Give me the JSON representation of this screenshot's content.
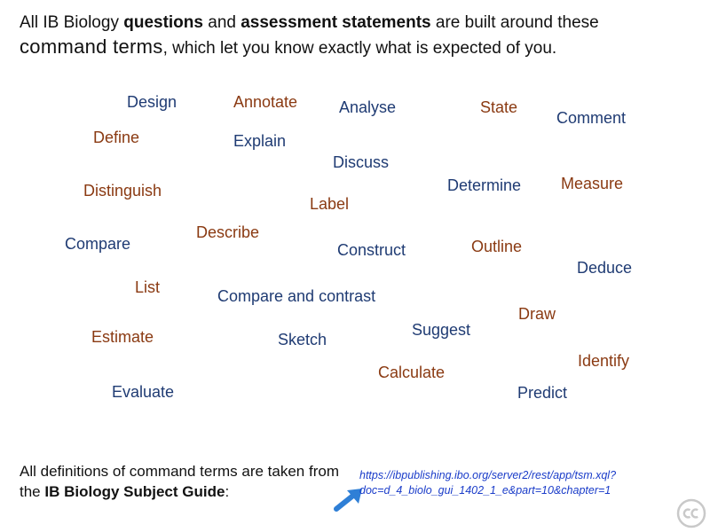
{
  "intro": {
    "line1_pre": "All IB Biology ",
    "line1_bold1": "questions",
    "line1_mid": " and ",
    "line1_bold2": "assessment statements",
    "line1_post": " are built around these",
    "line2_big": "command terms",
    "line2_post": ", which let you know exactly what is expected of you."
  },
  "terms": {
    "design": "Design",
    "annotate": "Annotate",
    "analyse": "Analyse",
    "state": "State",
    "comment": "Comment",
    "define": "Define",
    "explain": "Explain",
    "discuss": "Discuss",
    "distinguish": "Distinguish",
    "determine": "Determine",
    "measure": "Measure",
    "label": "Label",
    "describe": "Describe",
    "compare": "Compare",
    "construct": "Construct",
    "outline": "Outline",
    "deduce": "Deduce",
    "list": "List",
    "compare_and_contrast": "Compare and contrast",
    "draw": "Draw",
    "estimate": "Estimate",
    "sketch": "Sketch",
    "suggest": "Suggest",
    "identify": "Identify",
    "calculate": "Calculate",
    "evaluate": "Evaluate",
    "predict": "Predict"
  },
  "footer": {
    "pre": "All definitions of command terms are taken from the ",
    "bold": "IB Biology Subject Guide",
    "post": ":",
    "link_text": "https://ibpublishing.ibo.org/server2/rest/app/tsm.xql?doc=d_4_biolo_gui_1402_1_e&part=10&chapter=1"
  },
  "colors": {
    "blue_terms": "#1f3b73",
    "brown_terms": "#8a3a12",
    "link": "#1a3cc9",
    "arrow": "#2f7fd6"
  },
  "icons": {
    "arrow": "arrow-icon",
    "license": "creative-commons-icon"
  }
}
